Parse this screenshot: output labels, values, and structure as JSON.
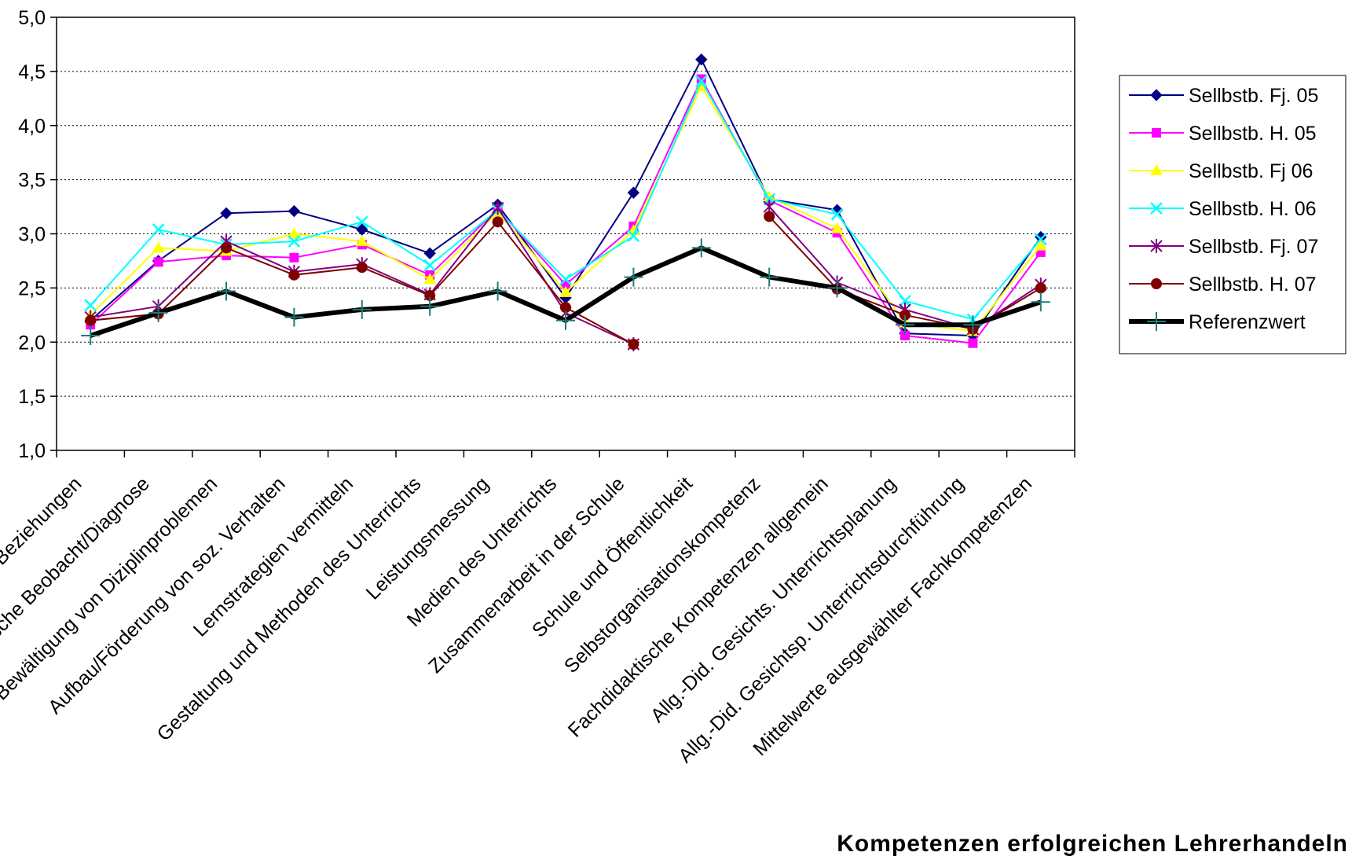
{
  "chart_data": {
    "type": "line",
    "title": "",
    "xlabel": "Kompetenzen erfolgreichen Lehrerhandeln",
    "ylabel": "",
    "ylim": [
      1.0,
      5.0
    ],
    "y_ticks": [
      "1,0",
      "1,5",
      "2,0",
      "2,5",
      "3,0",
      "3,5",
      "4,0",
      "4,5",
      "5,0"
    ],
    "grid": "horizontal dotted",
    "legend": "right",
    "categories": [
      "Beziehungen",
      "Pädagogische Beobacht/Diagnose",
      "Bewältigung von Diziplinproblemen",
      "Aufbau/Förderung von soz. Verhalten",
      "Lernstrategien vermitteln",
      "Gestaltung und Methoden des Unterrichts",
      "Leistungsmessung",
      "Medien des Unterrichts",
      "Zusammenarbeit in der Schule",
      "Schule und Öffentlichkeit",
      "Selbstorganisationskompetenz",
      "Fachdidaktische Kompetenzen allgemein",
      "Allg.-Did. Gesichts. Unterrichtsplanung",
      "Allg.-Did. Gesichtsp. Unterrichtsdurchführung",
      "Mittelwerte ausgewählter Fachkompetenzen"
    ],
    "series": [
      {
        "name": "Sellbstb. Fj. 05",
        "color": "#000080",
        "marker": "diamond",
        "width": 2,
        "values": [
          2.2,
          2.75,
          3.19,
          3.21,
          3.04,
          2.82,
          3.27,
          2.41,
          3.38,
          4.61,
          3.32,
          3.22,
          2.08,
          2.06,
          2.97
        ]
      },
      {
        "name": "Sellbstb. H. 05",
        "color": "#ff00ff",
        "marker": "square",
        "width": 2,
        "values": [
          2.16,
          2.74,
          2.8,
          2.78,
          2.9,
          2.62,
          3.23,
          2.53,
          3.07,
          4.43,
          3.31,
          3.01,
          2.06,
          1.99,
          2.83
        ]
      },
      {
        "name": "Sellbstb. Fj 06",
        "color": "#ffff00",
        "marker": "triangle",
        "width": 2,
        "values": [
          2.25,
          2.87,
          2.84,
          3.0,
          2.93,
          2.58,
          3.2,
          2.46,
          3.03,
          4.36,
          3.34,
          3.05,
          2.18,
          2.1,
          2.89
        ]
      },
      {
        "name": "Sellbstb. H. 06",
        "color": "#00ffff",
        "marker": "x",
        "width": 2,
        "values": [
          2.34,
          3.04,
          2.9,
          2.93,
          3.11,
          2.71,
          3.22,
          2.58,
          2.98,
          4.41,
          3.32,
          3.18,
          2.38,
          2.21,
          2.95
        ]
      },
      {
        "name": "Sellbstb. Fj. 07",
        "color": "#800080",
        "marker": "star",
        "width": 2,
        "values": [
          2.23,
          2.33,
          2.93,
          2.65,
          2.72,
          2.44,
          3.24,
          2.27,
          1.98,
          null,
          3.25,
          2.55,
          2.3,
          2.12,
          2.53
        ]
      },
      {
        "name": "Sellbstb. H. 07",
        "color": "#800000",
        "marker": "circle",
        "width": 2,
        "values": [
          2.2,
          2.26,
          2.87,
          2.62,
          2.69,
          2.43,
          3.11,
          2.32,
          1.98,
          null,
          3.16,
          2.49,
          2.25,
          2.12,
          2.5
        ]
      },
      {
        "name": "Referenzwert",
        "color": "#000000",
        "marker": "plus",
        "width": 6,
        "values": [
          2.06,
          2.27,
          2.47,
          2.23,
          2.3,
          2.33,
          2.47,
          2.2,
          2.6,
          2.87,
          2.6,
          2.5,
          2.16,
          2.16,
          2.37
        ]
      }
    ]
  }
}
